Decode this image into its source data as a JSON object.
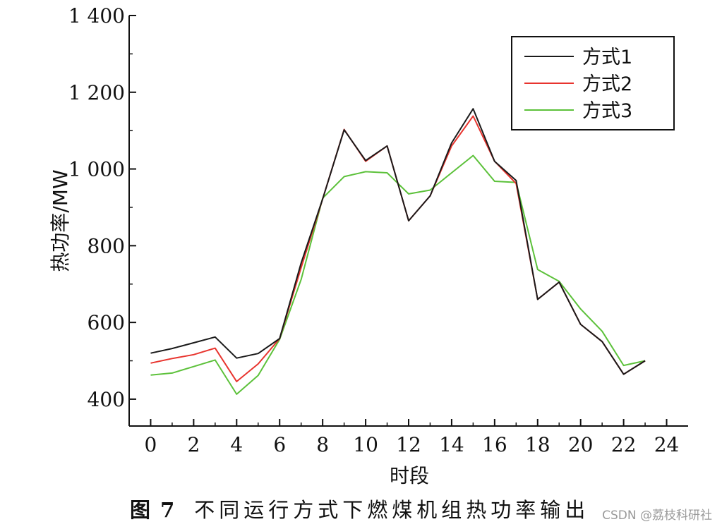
{
  "chart_data": {
    "type": "line",
    "xlabel": "时段",
    "ylabel": "热功率/MW",
    "x": [
      0,
      1,
      2,
      3,
      4,
      5,
      6,
      7,
      8,
      9,
      10,
      11,
      12,
      13,
      14,
      15,
      16,
      17,
      18,
      19,
      20,
      21,
      22,
      23
    ],
    "xlim": [
      -1,
      25
    ],
    "ylim": [
      330,
      1400
    ],
    "xticks": [
      0,
      2,
      4,
      6,
      8,
      10,
      12,
      14,
      16,
      18,
      20,
      22,
      24
    ],
    "xtick_labels": [
      "0",
      "2",
      "4",
      "6",
      "8",
      "10",
      "12",
      "14",
      "16",
      "18",
      "20",
      "22",
      "24"
    ],
    "yticks": [
      400,
      600,
      800,
      1000,
      1200,
      1400
    ],
    "ytick_labels": [
      "400",
      "600",
      "800",
      "1 000",
      "1 200",
      "1 400"
    ],
    "grid": false,
    "legend_position": "top-right",
    "series": [
      {
        "name": "方式1",
        "color": "#1a1a1a",
        "values": [
          520,
          532,
          547,
          562,
          507,
          519,
          558,
          755,
          922,
          1102,
          1022,
          1060,
          865,
          930,
          1068,
          1157,
          1020,
          970,
          660,
          705,
          595,
          550,
          465,
          500
        ]
      },
      {
        "name": "方式2",
        "color": "#e8342e",
        "values": [
          494,
          506,
          516,
          533,
          446,
          492,
          558,
          743,
          922,
          1103,
          1020,
          1060,
          865,
          930,
          1060,
          1138,
          1020,
          962,
          660,
          705,
          595,
          550,
          465,
          500
        ]
      },
      {
        "name": "方式3",
        "color": "#5cc13a",
        "values": [
          463,
          468,
          485,
          502,
          413,
          462,
          556,
          712,
          924,
          980,
          993,
          990,
          935,
          945,
          990,
          1035,
          968,
          965,
          738,
          707,
          635,
          577,
          488,
          500
        ]
      }
    ]
  },
  "caption": {
    "figure_number": "图 7",
    "text": "不同运行方式下燃煤机组热功率输出"
  },
  "watermark": "CSDN @荔枝科研社"
}
